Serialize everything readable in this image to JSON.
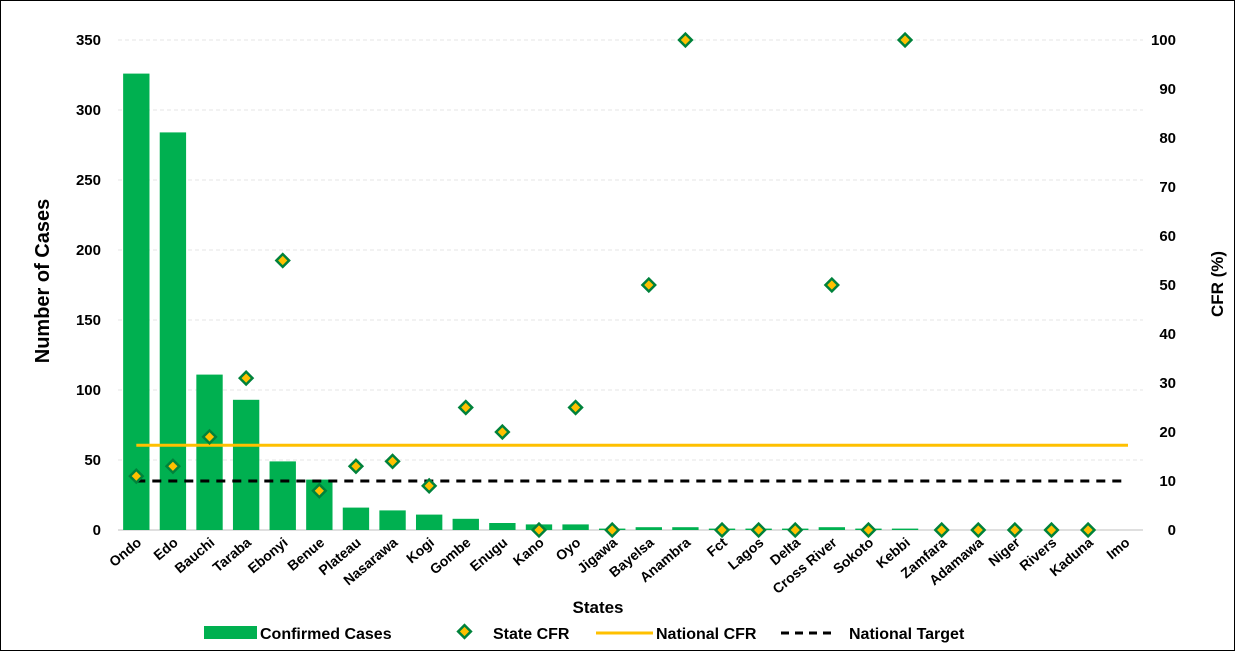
{
  "chart_data": {
    "type": "bar",
    "title": "",
    "xlabel": "States",
    "ylabel": "Number of Cases",
    "y2label": "CFR (%)",
    "ylim": [
      0,
      350
    ],
    "y2lim": [
      0,
      100
    ],
    "yticks": [
      "0",
      "50",
      "100",
      "150",
      "200",
      "250",
      "300",
      "350"
    ],
    "y2ticks": [
      "0",
      "10",
      "20",
      "30",
      "40",
      "50",
      "60",
      "70",
      "80",
      "90",
      "100"
    ],
    "grid": true,
    "legend_position": "bottom",
    "categories": [
      "Ondo",
      "Edo",
      "Bauchi",
      "Taraba",
      "Ebonyi",
      "Benue",
      "Plateau",
      "Nasarawa",
      "Kogi",
      "Gombe",
      "Enugu",
      "Kano",
      "Oyo",
      "Jigawa",
      "Bayelsa",
      "Anambra",
      "Fct",
      "Lagos",
      "Delta",
      "Cross River",
      "Sokoto",
      "Kebbi",
      "Zamfara",
      "Adamawa",
      "Niger",
      "Rivers",
      "Kaduna",
      "Imo"
    ],
    "series": [
      {
        "name": "Confirmed Cases",
        "type": "bar",
        "axis": "left",
        "color": "#00b050",
        "values": [
          326,
          284,
          111,
          93,
          49,
          36,
          16,
          14,
          11,
          8,
          5,
          4,
          4,
          1,
          2,
          2,
          1,
          1,
          1,
          2,
          1,
          1,
          0,
          0,
          0,
          0,
          0,
          0
        ]
      },
      {
        "name": "State CFR",
        "type": "scatter",
        "axis": "right",
        "fill": "#ffc000",
        "stroke": "#00823b",
        "values": [
          11,
          13,
          19,
          31,
          55,
          8,
          13,
          14,
          9,
          25,
          20,
          0,
          25,
          0,
          50,
          100,
          0,
          0,
          0,
          50,
          0,
          100,
          0,
          0,
          0,
          0,
          0,
          null
        ]
      },
      {
        "name": "National CFR",
        "type": "line",
        "axis": "right",
        "color": "#ffc000",
        "value": 17.3
      },
      {
        "name": "National Target",
        "type": "line",
        "axis": "right",
        "color": "#000000",
        "dashed": true,
        "value": 10
      }
    ]
  }
}
